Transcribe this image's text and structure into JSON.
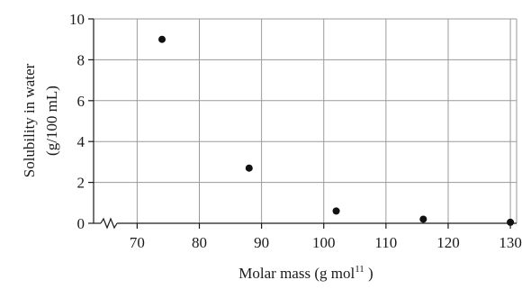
{
  "chart_data": {
    "type": "scatter",
    "xlabel_main": "Molar mass (g mol",
    "xlabel_sup": "11",
    "xlabel_end": " )",
    "ylabel_line1": "Solubility in water",
    "ylabel_line2": "(g/100 mL)",
    "xlim": [
      63,
      131
    ],
    "ylim": [
      0,
      10
    ],
    "xticks": [
      70,
      80,
      90,
      100,
      110,
      120,
      130
    ],
    "yticks": [
      0,
      2,
      4,
      6,
      8,
      10
    ],
    "grid": true,
    "x_axis_break": true,
    "point_color": "#111111",
    "series": [
      {
        "x": [
          74,
          88,
          102,
          116,
          130
        ],
        "y": [
          9.0,
          2.7,
          0.6,
          0.2,
          0.05
        ]
      }
    ]
  }
}
